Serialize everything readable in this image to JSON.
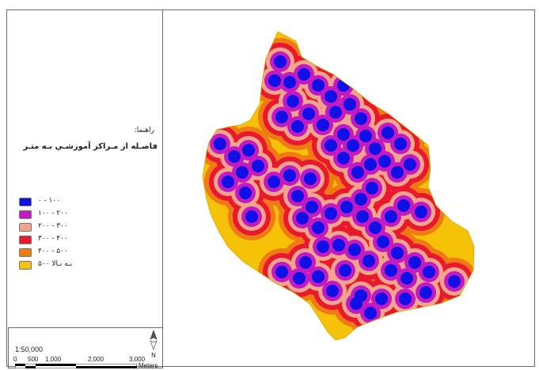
{
  "legend": {
    "small_title": "راهنما:",
    "title": "فاصـله از مـراكز آموزشـي بـه متـر",
    "items": [
      {
        "label": "۰ - ۱۰۰",
        "color": "#1010e6"
      },
      {
        "label": "۱۰۰ - ۲۰۰",
        "color": "#c21ac2"
      },
      {
        "label": "۲۰۰ - ۳۰۰",
        "color": "#f2a58c"
      },
      {
        "label": "۳۰۰ - ۴۰۰",
        "color": "#e8192e"
      },
      {
        "label": "۴۰۰ - ۵۰۰",
        "color": "#f07a14"
      },
      {
        "label": "۵۰۰ بـه بـالا",
        "color": "#f5c207"
      }
    ]
  },
  "scale": {
    "ratio": "1:50,000",
    "ticks": [
      "0",
      "500",
      "1,000",
      "2,000",
      "3,000"
    ],
    "unit": "Meters",
    "north_label": "N"
  },
  "map": {
    "base_color": "#f5c207",
    "band_colors": [
      "#f07a14",
      "#e8192e",
      "#f2a58c",
      "#c21ac2",
      "#1010e6"
    ]
  }
}
